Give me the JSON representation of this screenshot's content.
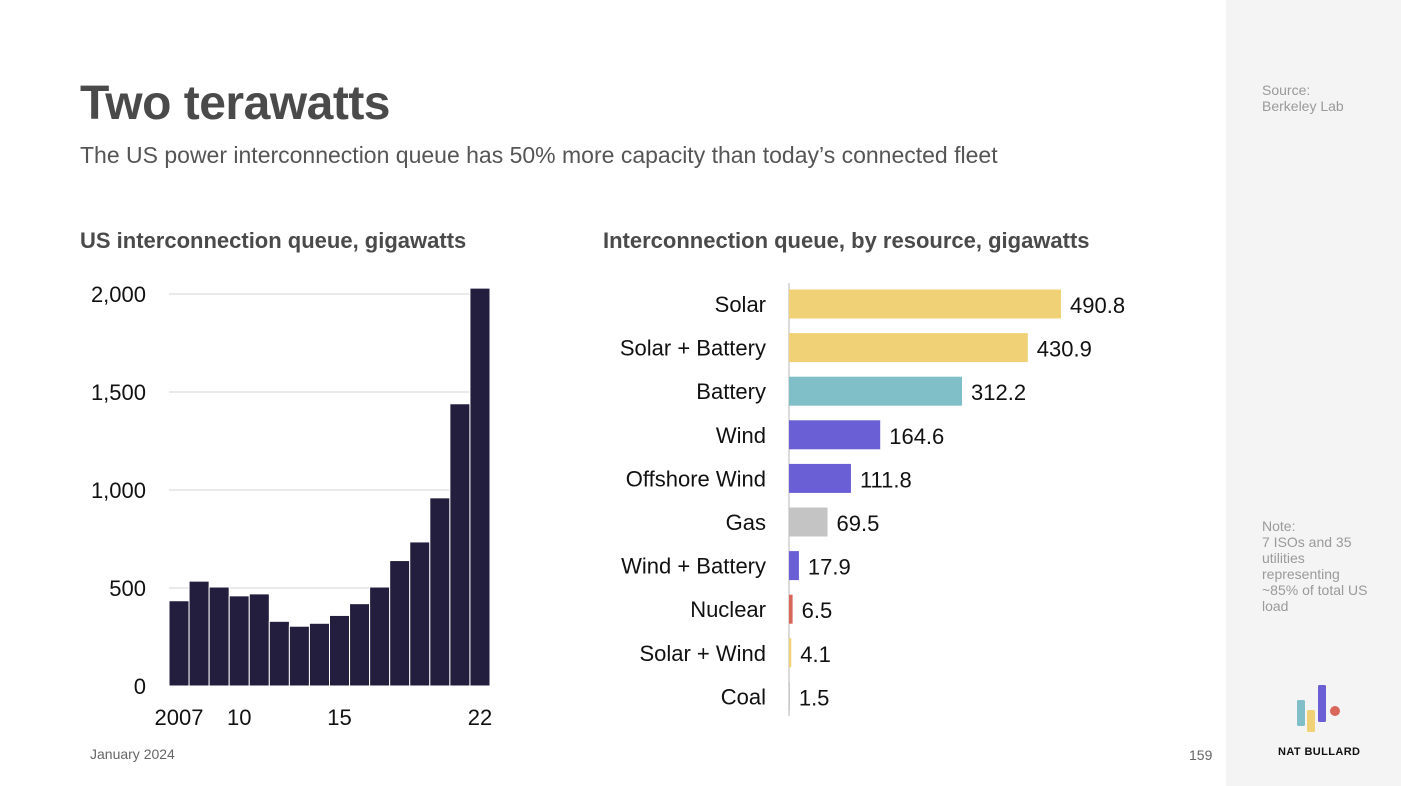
{
  "slide": {
    "title": "Two terawatts",
    "subtitle": "The US power interconnection queue has 50% more capacity than today’s connected fleet",
    "date": "January 2024",
    "page_number": "159"
  },
  "sidebar": {
    "source_label": "Source:",
    "source_text": "Berkeley Lab",
    "note_label": "Note:",
    "note_text": "7 ISOs and 35 utilities representing ~85% of total US load",
    "brand": "NAT BULLARD"
  },
  "colors": {
    "bar_dark": "#231e3d",
    "solar": "#f0d175",
    "battery": "#80bec8",
    "wind": "#6a5fd4",
    "gas": "#c4c4c4",
    "nuclear": "#d9665b",
    "text": "#4a4a4a"
  },
  "chart_data": [
    {
      "type": "bar",
      "title": "US interconnection queue, gigawatts",
      "x": [
        2007,
        2008,
        2009,
        2010,
        2011,
        2012,
        2013,
        2014,
        2015,
        2016,
        2017,
        2018,
        2019,
        2020,
        2021,
        2022
      ],
      "x_tick_labels": [
        {
          "x": 2007,
          "label": "2007"
        },
        {
          "x": 2010,
          "label": "10"
        },
        {
          "x": 2015,
          "label": "15"
        },
        {
          "x": 2022,
          "label": "22"
        }
      ],
      "values": [
        435,
        535,
        505,
        460,
        470,
        330,
        305,
        320,
        360,
        420,
        505,
        640,
        735,
        960,
        1440,
        2030
      ],
      "ylim": [
        0,
        2000
      ],
      "y_ticks": [
        0,
        500,
        1000,
        1500,
        2000
      ],
      "y_tick_labels": [
        "0",
        "500",
        "1,000",
        "1,500",
        "2,000"
      ],
      "grid": true,
      "color": "#231e3d"
    },
    {
      "type": "bar",
      "orientation": "horizontal",
      "title": "Interconnection queue, by resource, gigawatts",
      "categories": [
        "Solar",
        "Solar + Battery",
        "Battery",
        "Wind",
        "Offshore Wind",
        "Gas",
        "Wind + Battery",
        "Nuclear",
        "Solar + Wind",
        "Coal"
      ],
      "values": [
        490.8,
        430.9,
        312.2,
        164.6,
        111.8,
        69.5,
        17.9,
        6.5,
        4.1,
        1.5
      ],
      "value_labels": [
        "490.8",
        "430.9",
        "312.2",
        "164.6",
        "111.8",
        "69.5",
        "17.9",
        "6.5",
        "4.1",
        "1.5"
      ],
      "colors": [
        "#f0d175",
        "#f0d175",
        "#80bec8",
        "#6a5fd4",
        "#6a5fd4",
        "#c4c4c4",
        "#6a5fd4",
        "#d9665b",
        "#f0d175",
        "#c4c4c4"
      ],
      "xlim": [
        0,
        500
      ]
    }
  ]
}
